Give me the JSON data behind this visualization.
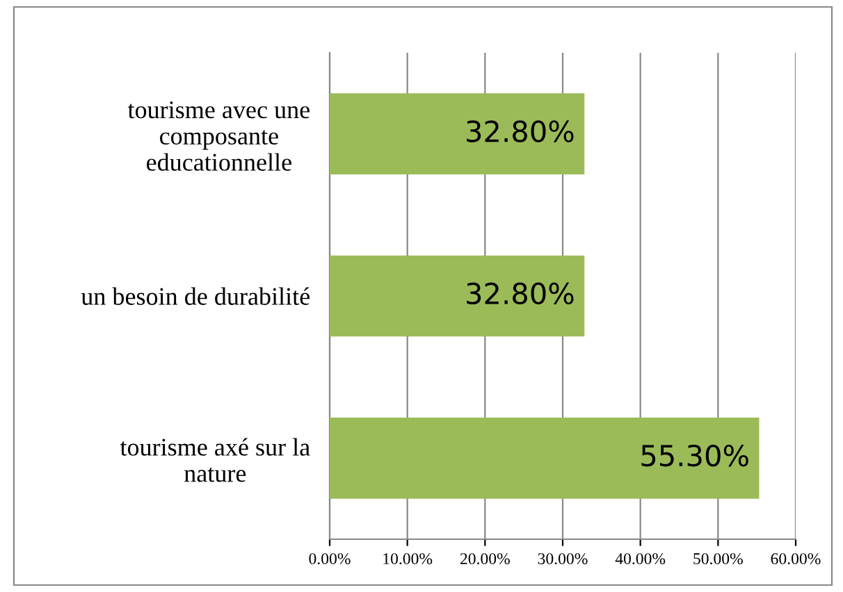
{
  "chart_data": {
    "type": "bar",
    "orientation": "horizontal",
    "categories": [
      "tourisme avec une\ncomposante\neducationnelle",
      "un besoin de durabilité",
      "tourisme axé sur la\nnature"
    ],
    "values": [
      32.8,
      32.8,
      55.3
    ],
    "value_labels": [
      "32.80%",
      "32.80%",
      "55.30%"
    ],
    "color": "#9bbb59",
    "xlim": [
      0,
      60
    ],
    "xticks": [
      {
        "value": 0,
        "label": "0.00%"
      },
      {
        "value": 10,
        "label": "10.00%"
      },
      {
        "value": 20,
        "label": "20.00%"
      },
      {
        "value": 30,
        "label": "30.00%"
      },
      {
        "value": 40,
        "label": "40.00%"
      },
      {
        "value": 50,
        "label": "50.00%"
      },
      {
        "value": 60,
        "label": "60.00%"
      }
    ],
    "grid": "x"
  }
}
